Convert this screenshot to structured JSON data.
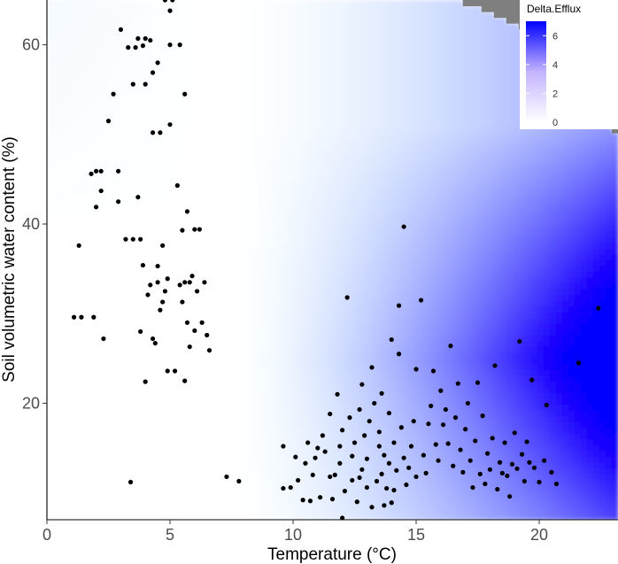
{
  "chart_data": {
    "type": "scatter",
    "title": "",
    "xlabel": "Temperature (°C)",
    "ylabel": "Soil volumetric water content (%)",
    "xlim": [
      0,
      23.2
    ],
    "ylim": [
      7,
      65
    ],
    "x_ticks": [
      "0",
      "5",
      "10",
      "15",
      "20"
    ],
    "y_ticks": [
      "20",
      "40",
      "60"
    ],
    "grid": false,
    "background": {
      "type": "heatmap",
      "fill_name": "Delta.Efflux",
      "low_color": "#ffffff",
      "high_color": "#0000ff",
      "na_color": "#7f7f7f",
      "range": [
        0,
        7
      ],
      "na_region": "upper-right (high temperature, high water content)"
    },
    "legend": {
      "title": "Delta.Efflux",
      "labels": [
        "6",
        "4",
        "2",
        "0"
      ],
      "placement": "top-right"
    },
    "point_color": "#000000",
    "points": [
      [
        1.1,
        29.6
      ],
      [
        1.4,
        29.6
      ],
      [
        1.9,
        29.6
      ],
      [
        1.3,
        37.6
      ],
      [
        1.8,
        45.6
      ],
      [
        2.0,
        45.9
      ],
      [
        2.2,
        45.9
      ],
      [
        2.0,
        41.9
      ],
      [
        2.2,
        43.7
      ],
      [
        2.3,
        27.2
      ],
      [
        2.5,
        51.5
      ],
      [
        2.7,
        54.5
      ],
      [
        2.9,
        45.9
      ],
      [
        2.9,
        42.5
      ],
      [
        3.0,
        61.7
      ],
      [
        3.2,
        38.3
      ],
      [
        3.3,
        59.7
      ],
      [
        3.5,
        38.3
      ],
      [
        3.5,
        55.6
      ],
      [
        3.6,
        59.7
      ],
      [
        3.7,
        60.7
      ],
      [
        3.7,
        43.0
      ],
      [
        3.8,
        28.0
      ],
      [
        3.8,
        38.3
      ],
      [
        3.9,
        35.4
      ],
      [
        3.9,
        59.9
      ],
      [
        4.0,
        60.7
      ],
      [
        4.0,
        22.4
      ],
      [
        4.0,
        55.6
      ],
      [
        4.1,
        32.1
      ],
      [
        4.2,
        33.2
      ],
      [
        4.2,
        60.5
      ],
      [
        4.3,
        27.2
      ],
      [
        4.3,
        56.9
      ],
      [
        4.3,
        50.2
      ],
      [
        4.4,
        26.7
      ],
      [
        4.5,
        33.5
      ],
      [
        4.5,
        35.3
      ],
      [
        4.5,
        58.0
      ],
      [
        4.6,
        30.4
      ],
      [
        4.6,
        50.2
      ],
      [
        4.7,
        37.6
      ],
      [
        4.7,
        31.3
      ],
      [
        4.8,
        65.0
      ],
      [
        4.8,
        32.5
      ],
      [
        4.9,
        33.9
      ],
      [
        4.9,
        23.6
      ],
      [
        5.0,
        63.8
      ],
      [
        5.0,
        51.1
      ],
      [
        5.0,
        60.0
      ],
      [
        5.1,
        65.0
      ],
      [
        5.2,
        23.6
      ],
      [
        5.3,
        44.3
      ],
      [
        5.4,
        33.2
      ],
      [
        5.4,
        60.0
      ],
      [
        5.5,
        31.3
      ],
      [
        5.5,
        39.3
      ],
      [
        5.6,
        54.5
      ],
      [
        5.6,
        33.5
      ],
      [
        5.6,
        22.5
      ],
      [
        5.7,
        41.4
      ],
      [
        5.7,
        29.0
      ],
      [
        5.8,
        26.3
      ],
      [
        5.8,
        33.5
      ],
      [
        5.9,
        34.2
      ],
      [
        6.0,
        28.1
      ],
      [
        6.0,
        39.4
      ],
      [
        6.1,
        32.5
      ],
      [
        6.2,
        39.4
      ],
      [
        6.3,
        29.0
      ],
      [
        6.4,
        33.5
      ],
      [
        6.5,
        27.6
      ],
      [
        6.6,
        25.9
      ],
      [
        7.3,
        11.8
      ],
      [
        7.8,
        11.3
      ],
      [
        3.4,
        11.2
      ],
      [
        9.6,
        10.5
      ],
      [
        9.6,
        15.2
      ],
      [
        9.9,
        10.6
      ],
      [
        10.1,
        14.0
      ],
      [
        10.2,
        11.4
      ],
      [
        10.4,
        9.2
      ],
      [
        10.5,
        13.3
      ],
      [
        10.6,
        15.6
      ],
      [
        10.7,
        9.1
      ],
      [
        10.8,
        12.0
      ],
      [
        10.9,
        13.9
      ],
      [
        11.0,
        15.0
      ],
      [
        11.1,
        9.5
      ],
      [
        11.2,
        16.4
      ],
      [
        11.3,
        14.6
      ],
      [
        11.5,
        11.8
      ],
      [
        11.5,
        18.8
      ],
      [
        11.6,
        9.3
      ],
      [
        11.7,
        12.0
      ],
      [
        11.8,
        21.0
      ],
      [
        11.9,
        13.3
      ],
      [
        11.9,
        15.2
      ],
      [
        12.0,
        17.0
      ],
      [
        12.0,
        7.2
      ],
      [
        12.1,
        10.2
      ],
      [
        12.2,
        31.8
      ],
      [
        12.3,
        18.4
      ],
      [
        12.4,
        11.4
      ],
      [
        12.4,
        14.1
      ],
      [
        12.5,
        15.6
      ],
      [
        12.6,
        9.0
      ],
      [
        12.7,
        19.3
      ],
      [
        12.7,
        11.7
      ],
      [
        12.8,
        22.1
      ],
      [
        12.8,
        12.6
      ],
      [
        12.9,
        16.4
      ],
      [
        13.0,
        10.6
      ],
      [
        13.0,
        13.8
      ],
      [
        13.1,
        18.0
      ],
      [
        13.2,
        8.4
      ],
      [
        13.2,
        24.0
      ],
      [
        13.3,
        20.0
      ],
      [
        13.4,
        11.3
      ],
      [
        13.5,
        15.2
      ],
      [
        13.5,
        16.8
      ],
      [
        13.6,
        12.1
      ],
      [
        13.6,
        21.1
      ],
      [
        13.7,
        8.6
      ],
      [
        13.7,
        14.2
      ],
      [
        13.8,
        10.5
      ],
      [
        13.9,
        13.3
      ],
      [
        13.9,
        18.9
      ],
      [
        14.0,
        8.9
      ],
      [
        14.0,
        27.1
      ],
      [
        14.1,
        15.6
      ],
      [
        14.1,
        10.3
      ],
      [
        14.2,
        12.5
      ],
      [
        14.3,
        30.9
      ],
      [
        14.3,
        25.5
      ],
      [
        14.5,
        39.7
      ],
      [
        14.4,
        17.3
      ],
      [
        14.5,
        13.9
      ],
      [
        14.6,
        10.9
      ],
      [
        14.7,
        12.8
      ],
      [
        14.8,
        15.2
      ],
      [
        14.9,
        18.0
      ],
      [
        15.0,
        11.8
      ],
      [
        15.0,
        23.8
      ],
      [
        15.2,
        31.5
      ],
      [
        15.3,
        14.2
      ],
      [
        15.4,
        12.2
      ],
      [
        15.5,
        17.7
      ],
      [
        15.6,
        19.7
      ],
      [
        15.7,
        23.6
      ],
      [
        15.8,
        15.4
      ],
      [
        15.9,
        13.6
      ],
      [
        16.0,
        21.4
      ],
      [
        16.1,
        17.6
      ],
      [
        16.2,
        19.3
      ],
      [
        16.3,
        15.5
      ],
      [
        16.4,
        26.4
      ],
      [
        16.5,
        13.0
      ],
      [
        16.6,
        18.4
      ],
      [
        16.7,
        22.2
      ],
      [
        16.8,
        14.8
      ],
      [
        16.9,
        12.3
      ],
      [
        17.0,
        17.1
      ],
      [
        17.1,
        20.0
      ],
      [
        17.2,
        13.6
      ],
      [
        17.3,
        10.6
      ],
      [
        17.4,
        15.8
      ],
      [
        17.5,
        22.3
      ],
      [
        17.6,
        12.1
      ],
      [
        17.7,
        18.6
      ],
      [
        17.8,
        11.0
      ],
      [
        17.9,
        14.4
      ],
      [
        18.0,
        12.6
      ],
      [
        18.1,
        16.1
      ],
      [
        18.2,
        24.2
      ],
      [
        18.3,
        10.4
      ],
      [
        18.4,
        13.4
      ],
      [
        18.5,
        12.2
      ],
      [
        18.6,
        15.6
      ],
      [
        18.7,
        11.9
      ],
      [
        18.8,
        9.6
      ],
      [
        18.9,
        13.2
      ],
      [
        19.0,
        16.7
      ],
      [
        19.1,
        12.7
      ],
      [
        19.2,
        26.9
      ],
      [
        19.3,
        14.3
      ],
      [
        19.4,
        11.3
      ],
      [
        19.5,
        15.7
      ],
      [
        19.6,
        13.4
      ],
      [
        19.7,
        22.6
      ],
      [
        19.8,
        12.8
      ],
      [
        20.0,
        11.2
      ],
      [
        20.2,
        13.6
      ],
      [
        20.3,
        19.8
      ],
      [
        20.5,
        12.3
      ],
      [
        20.7,
        11.0
      ],
      [
        21.6,
        24.5
      ],
      [
        22.4,
        30.6
      ]
    ]
  }
}
